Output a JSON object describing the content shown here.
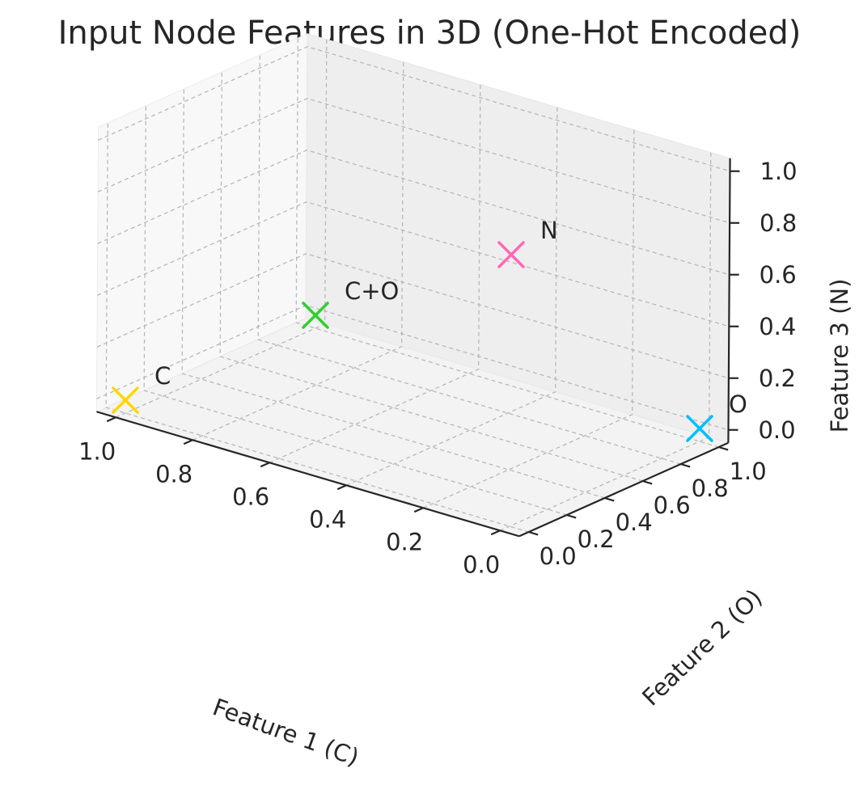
{
  "chart_data": {
    "type": "scatter",
    "title": "Input Node Features in 3D (One-Hot Encoded)",
    "xlabel": "Feature 1 (C)",
    "ylabel": "Feature 2 (O)",
    "zlabel": "Feature 3 (N)",
    "xlim": [
      0.0,
      1.0
    ],
    "ylim": [
      0.0,
      1.0
    ],
    "zlim": [
      0.0,
      1.0
    ],
    "x_ticks": [
      "0.0",
      "0.2",
      "0.4",
      "0.6",
      "0.8",
      "1.0"
    ],
    "y_ticks": [
      "0.0",
      "0.2",
      "0.4",
      "0.6",
      "0.8",
      "1.0"
    ],
    "z_ticks": [
      "0.0",
      "0.2",
      "0.4",
      "0.6",
      "0.8",
      "1.0"
    ],
    "grid": true,
    "marker": "x",
    "points": [
      {
        "label": "C",
        "x": 1,
        "y": 0,
        "z": 0,
        "color": "#FFD700"
      },
      {
        "label": "O",
        "x": 0,
        "y": 1,
        "z": 0,
        "color": "#00BFFF"
      },
      {
        "label": "N",
        "x": 0,
        "y": 0,
        "z": 1,
        "color": "#FF69B4"
      },
      {
        "label": "C+O",
        "x": 1,
        "y": 1,
        "z": 0,
        "color": "#32CD32"
      }
    ]
  }
}
